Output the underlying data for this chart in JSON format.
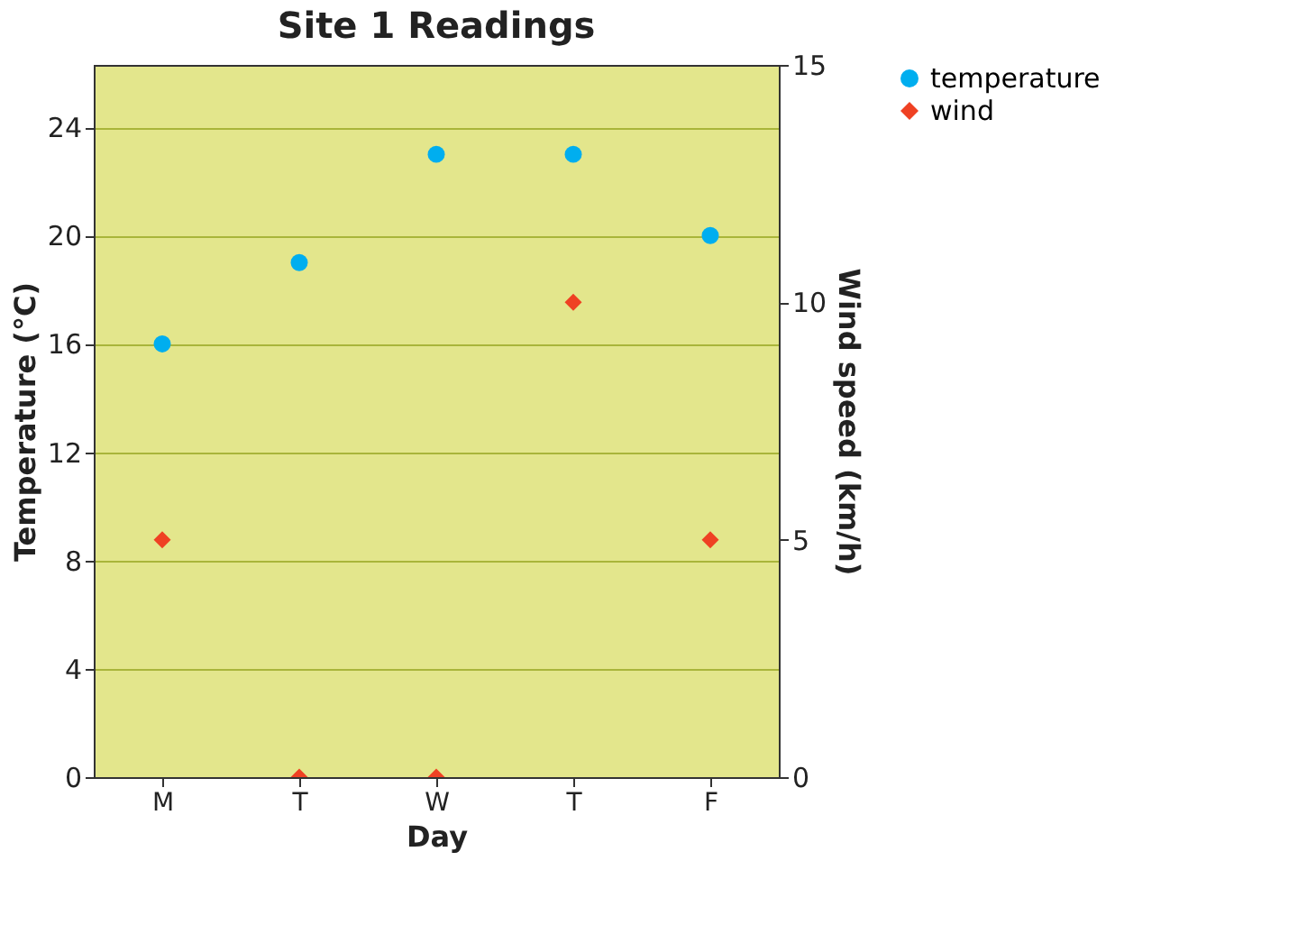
{
  "chart_data": {
    "type": "scatter",
    "title": "Site 1 Readings",
    "xlabel": "Day",
    "ylabel": "Temperature (°C)",
    "y2label": "Wind speed (km/h)",
    "categories": [
      "M",
      "T",
      "W",
      "T",
      "F"
    ],
    "series": [
      {
        "name": "temperature",
        "color": "#00aeef",
        "marker": "circle",
        "values": [
          16,
          19,
          23,
          23,
          20
        ]
      },
      {
        "name": "wind",
        "color": "#ef4123",
        "marker": "diamond",
        "axis": "y2",
        "values": [
          5,
          0,
          0,
          10,
          5
        ]
      }
    ],
    "ylim": [
      0,
      26.3
    ],
    "yticks": [
      0,
      4,
      8,
      12,
      16,
      20,
      24
    ],
    "y2lim": [
      0,
      15
    ],
    "y2ticks": [
      0,
      5,
      10,
      15
    ],
    "grid": "y",
    "legend": "top right"
  }
}
